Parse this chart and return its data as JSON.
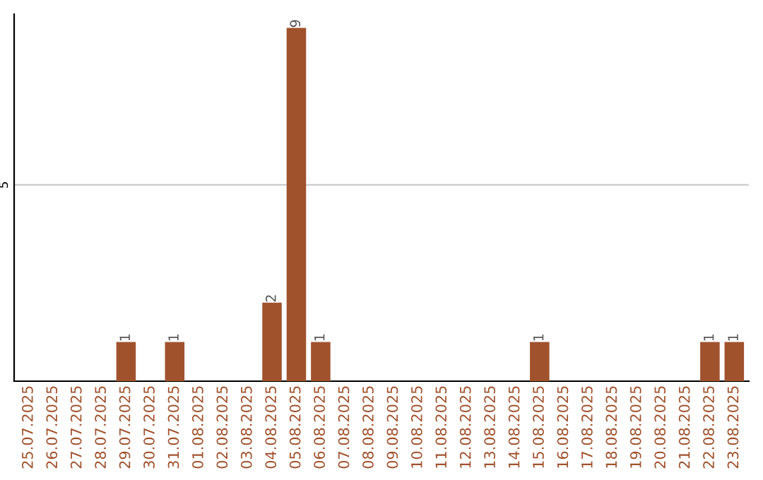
{
  "chart_data": {
    "type": "bar",
    "categories": [
      "25.07.2025",
      "26.07.2025",
      "27.07.2025",
      "28.07.2025",
      "29.07.2025",
      "30.07.2025",
      "31.07.2025",
      "01.08.2025",
      "02.08.2025",
      "03.08.2025",
      "04.08.2025",
      "05.08.2025",
      "06.08.2025",
      "07.08.2025",
      "08.08.2025",
      "09.08.2025",
      "10.08.2025",
      "11.08.2025",
      "12.08.2025",
      "13.08.2025",
      "14.08.2025",
      "15.08.2025",
      "16.08.2025",
      "17.08.2025",
      "18.08.2025",
      "19.08.2025",
      "20.08.2025",
      "21.08.2025",
      "22.08.2025",
      "23.08.2025"
    ],
    "values": [
      0,
      0,
      0,
      0,
      1,
      0,
      1,
      0,
      0,
      0,
      2,
      9,
      1,
      0,
      0,
      0,
      0,
      0,
      0,
      0,
      0,
      1,
      0,
      0,
      0,
      0,
      0,
      0,
      1,
      1
    ],
    "value_labels": [
      null,
      null,
      null,
      null,
      "1",
      null,
      "1",
      null,
      null,
      null,
      "2",
      "9",
      "1",
      null,
      null,
      null,
      null,
      null,
      null,
      null,
      null,
      "1",
      null,
      null,
      null,
      null,
      null,
      null,
      "1",
      "1"
    ],
    "color": "#a0522d",
    "ylim": [
      0,
      9.35
    ],
    "yticks": [
      5
    ],
    "grid": "y"
  }
}
